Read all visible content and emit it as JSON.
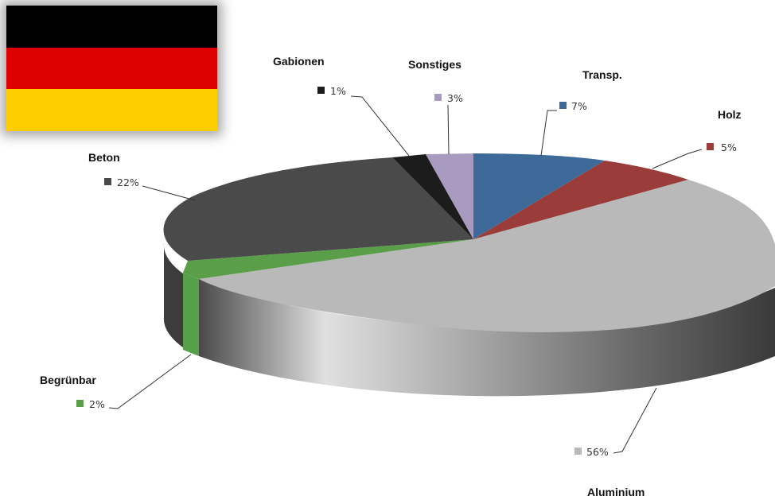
{
  "flag": {
    "name": "germany-flag",
    "colors": [
      "#000000",
      "#dd0000",
      "#ffce00"
    ]
  },
  "chart_data": {
    "type": "pie",
    "title": "",
    "style": "3d-exploded-tilted",
    "slices": [
      {
        "label": "Transp.",
        "value": 7,
        "display": "7%",
        "color": "#3e6a9a"
      },
      {
        "label": "Holz",
        "value": 5,
        "display": "5%",
        "color": "#993c3a"
      },
      {
        "label": "Aluminium",
        "value": 56,
        "display": "56%",
        "color": "#b9b9b9"
      },
      {
        "label": "Begrünbar",
        "value": 2,
        "display": "2%",
        "color": "#5a9e4a"
      },
      {
        "label": "Beton",
        "value": 22,
        "display": "22%",
        "color": "#4a4a4a"
      },
      {
        "label": "Gabionen",
        "value": 1,
        "display": "1%",
        "color": "#1c1c1c"
      },
      {
        "label": "Sonstiges",
        "value": 3,
        "display": "3%",
        "color": "#a89bbf"
      }
    ]
  }
}
